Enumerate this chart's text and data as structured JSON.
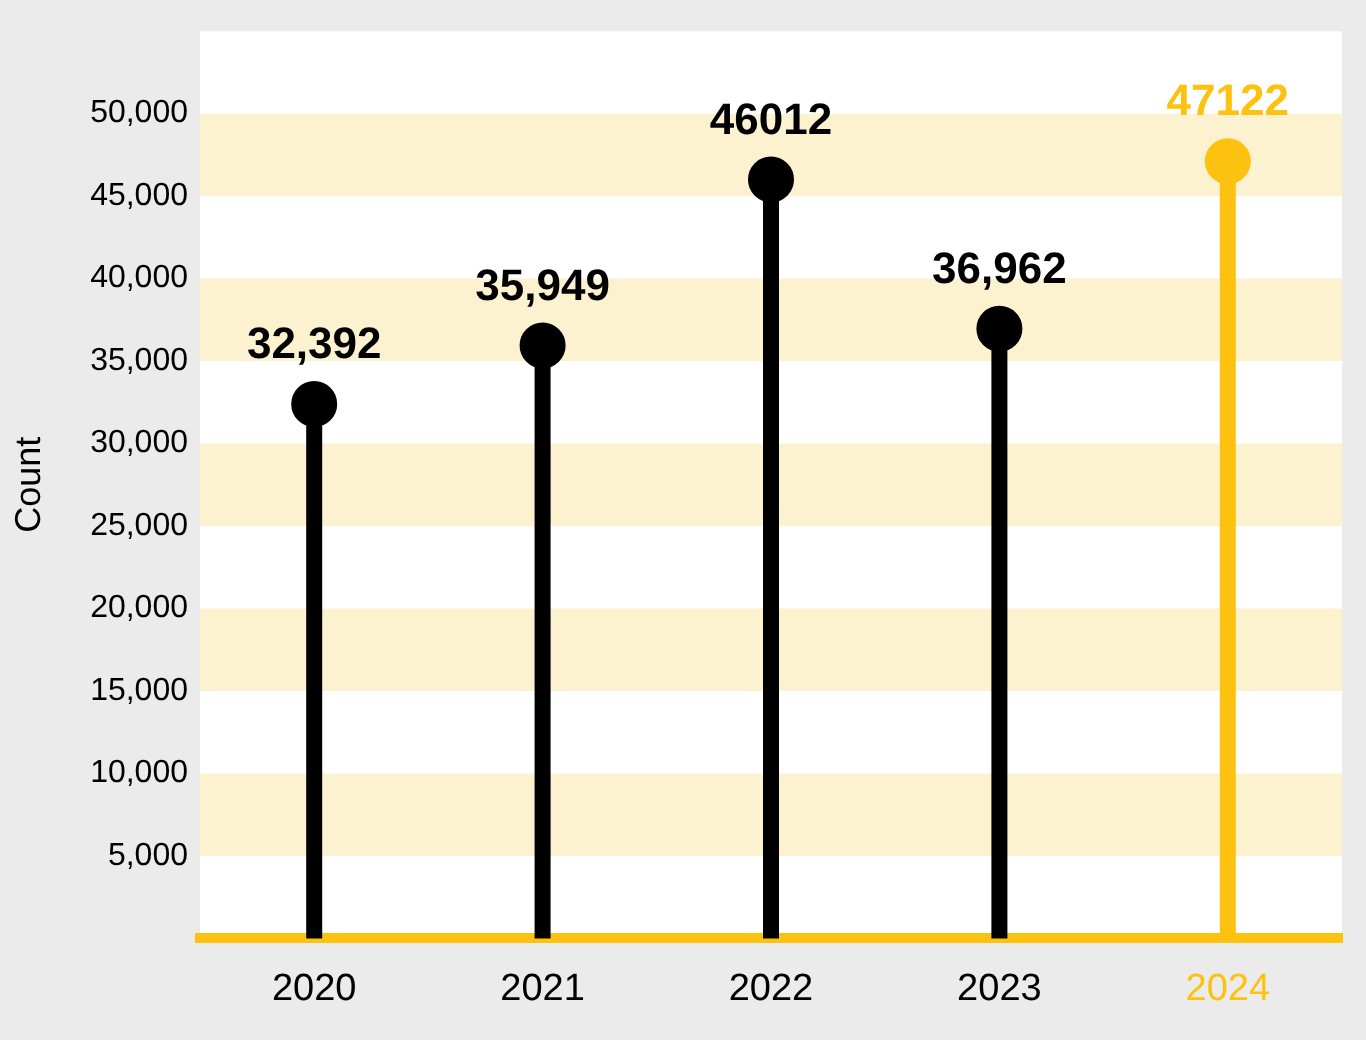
{
  "chart_data": {
    "type": "lollipop",
    "ylabel": "Count",
    "categories": [
      "2020",
      "2021",
      "2022",
      "2023",
      "2024"
    ],
    "values": [
      32392,
      35949,
      46012,
      36962,
      47122
    ],
    "colors": [
      "#000000",
      "#000000",
      "#000000",
      "#000000",
      "#fdc20f"
    ],
    "value_labels": [
      "32,392",
      "35,949",
      "46012",
      "36,962",
      "47122"
    ],
    "ylim": [
      0,
      55000
    ],
    "yticks": [
      {
        "value": 5000,
        "label": "5,000"
      },
      {
        "value": 10000,
        "label": "10,000"
      },
      {
        "value": 15000,
        "label": "15,000"
      },
      {
        "value": 20000,
        "label": "20,000"
      },
      {
        "value": 25000,
        "label": "25,000"
      },
      {
        "value": 30000,
        "label": "30,000"
      },
      {
        "value": 35000,
        "label": "35,000"
      },
      {
        "value": 40000,
        "label": "40,000"
      },
      {
        "value": 45000,
        "label": "45,000"
      },
      {
        "value": 50000,
        "label": "50,000"
      }
    ],
    "bands": [
      {
        "axis": "y",
        "from": 5000,
        "to": 10000,
        "color": "#fdf2cf"
      },
      {
        "axis": "y",
        "from": 15000,
        "to": 20000,
        "color": "#fdf2cf"
      },
      {
        "axis": "y",
        "from": 25000,
        "to": 30000,
        "color": "#fdf2cf"
      },
      {
        "axis": "y",
        "from": 35000,
        "to": 40000,
        "color": "#fdf2cf"
      },
      {
        "axis": "y",
        "from": 45000,
        "to": 50000,
        "color": "#fdf2cf"
      }
    ],
    "grid": false,
    "legend": false,
    "marker": "circle"
  }
}
